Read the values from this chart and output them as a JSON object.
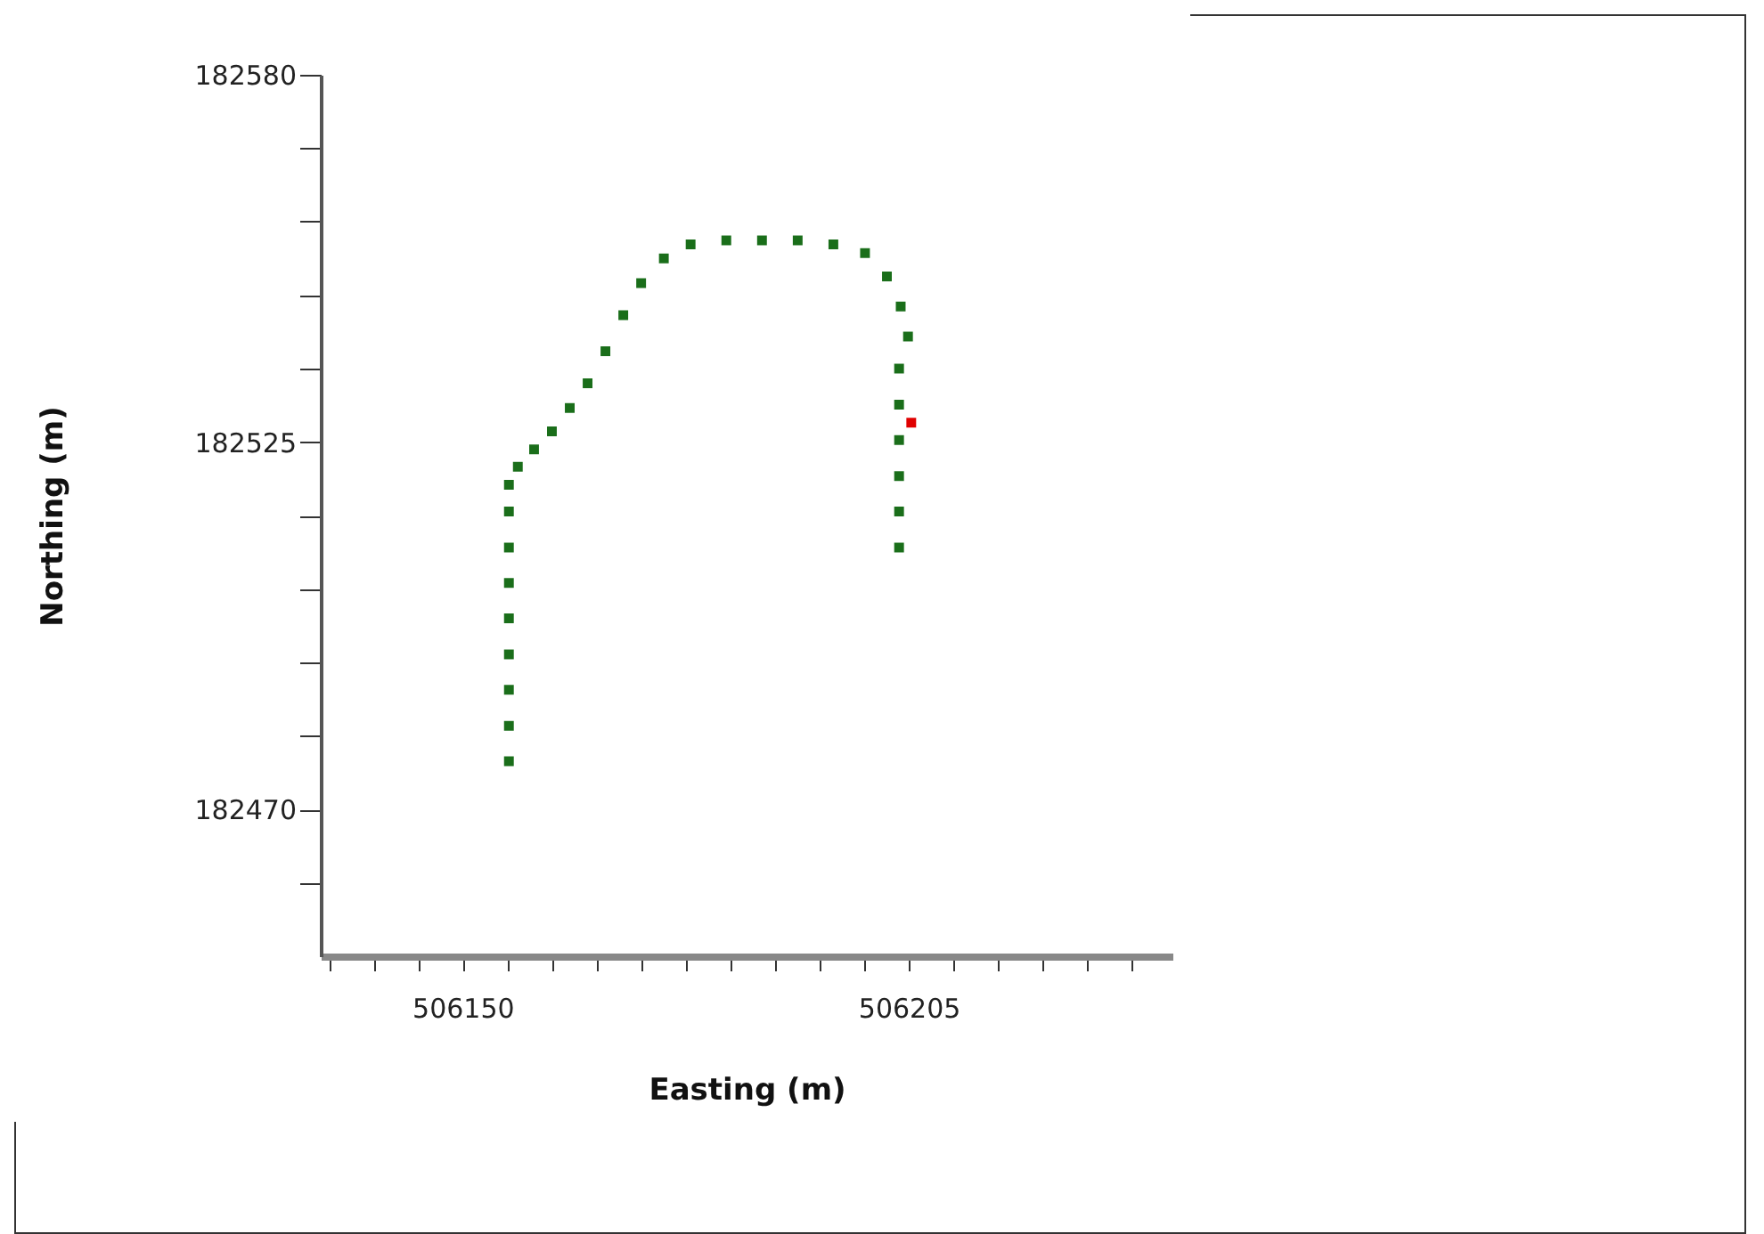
{
  "chart_data": {
    "type": "scatter",
    "xlabel": "Easting (m)",
    "ylabel": "Northing (m)",
    "marker": "square",
    "grid": false,
    "legend": false,
    "xlim": [
      506132.5,
      506237.5
    ],
    "xticks": [
      {
        "value": 506133.5,
        "label": null
      },
      {
        "value": 506139,
        "label": null
      },
      {
        "value": 506144.5,
        "label": null
      },
      506150,
      {
        "value": 506155.5,
        "label": null
      },
      {
        "value": 506161,
        "label": null
      },
      {
        "value": 506166.5,
        "label": null
      },
      {
        "value": 506172,
        "label": null
      },
      {
        "value": 506177.5,
        "label": null
      },
      {
        "value": 506183,
        "label": null
      },
      {
        "value": 506188.5,
        "label": null
      },
      {
        "value": 506194,
        "label": null
      },
      {
        "value": 506199.5,
        "label": null
      },
      506205,
      {
        "value": 506210.5,
        "label": null
      },
      {
        "value": 506216,
        "label": null
      },
      {
        "value": 506221.5,
        "label": null
      },
      {
        "value": 506227,
        "label": null
      },
      {
        "value": 506232.5,
        "label": null
      }
    ],
    "ylim": [
      182448,
      182580
    ],
    "yticks": [
      {
        "value": 182459,
        "label": null
      },
      182470,
      {
        "value": 182481,
        "label": null
      },
      {
        "value": 182492,
        "label": null
      },
      {
        "value": 182503,
        "label": null
      },
      {
        "value": 182514,
        "label": null
      },
      182525,
      {
        "value": 182536,
        "label": null
      },
      {
        "value": 182547,
        "label": null
      },
      {
        "value": 182558,
        "label": null
      },
      {
        "value": 182569,
        "label": null
      },
      182580
    ],
    "series": [
      {
        "color": "#1a6e1a",
        "x": [
          506155.7,
          506155.7,
          506155.7,
          506155.7,
          506155.7,
          506155.7,
          506155.7,
          506155.7,
          506155.7,
          506156.8,
          506158.8,
          506161.0,
          506163.2,
          506165.4,
          506167.6,
          506169.8,
          506172.0,
          506174.8,
          506178.1,
          506182.5,
          506186.9,
          506191.3,
          506195.7,
          506199.6,
          506202.3,
          506204.0,
          506204.9,
          506203.8,
          506203.8,
          506203.8,
          506203.8,
          506203.8,
          506203.8
        ],
        "values": [
          182477.2,
          182482.5,
          182487.9,
          182493.2,
          182498.6,
          182503.9,
          182509.2,
          182514.6,
          182518.6,
          182521.3,
          182523.9,
          182526.6,
          182530.1,
          182533.8,
          182538.6,
          182544.0,
          182548.8,
          182552.5,
          182554.6,
          182555.2,
          182555.2,
          182555.2,
          182554.6,
          182553.3,
          182549.8,
          182545.3,
          182540.8,
          182536.0,
          182530.6,
          182525.3,
          182519.9,
          182514.6,
          182509.2
        ]
      },
      {
        "color": "#e00000",
        "x": [
          506205.3
        ],
        "values": [
          182527.9
        ]
      }
    ]
  }
}
